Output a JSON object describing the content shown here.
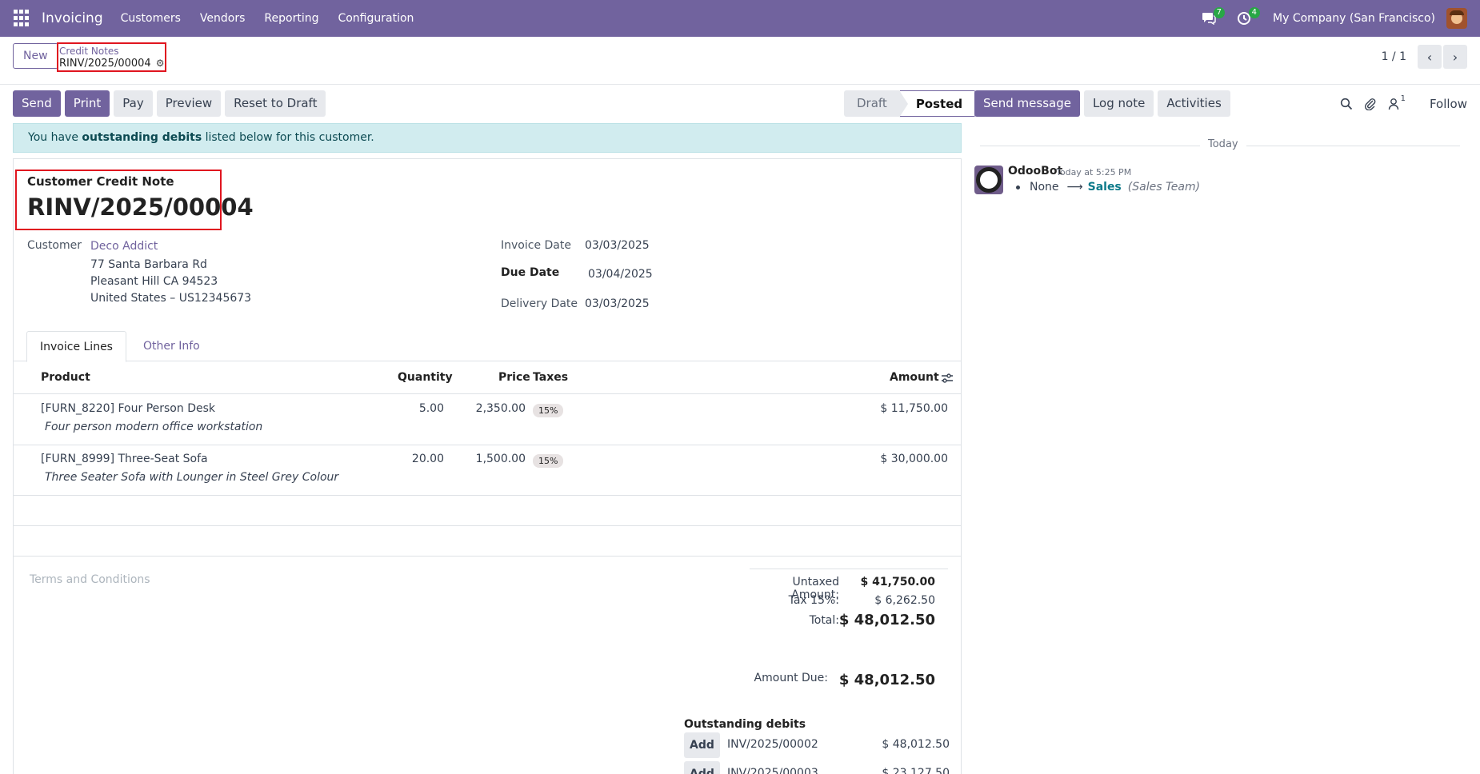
{
  "navbar": {
    "app_title": "Invoicing",
    "menu": [
      "Customers",
      "Vendors",
      "Reporting",
      "Configuration"
    ],
    "messages_badge": "7",
    "activities_badge": "4",
    "company": "My Company (San Francisco)"
  },
  "control": {
    "new_label": "New",
    "breadcrumb_parent": "Credit Notes",
    "breadcrumb_current": "RINV/2025/00004",
    "pager_value": "1 / 1"
  },
  "actions": {
    "send": "Send",
    "print": "Print",
    "pay": "Pay",
    "preview": "Preview",
    "reset": "Reset to Draft"
  },
  "status": {
    "draft": "Draft",
    "posted": "Posted"
  },
  "alert": {
    "prefix": "You have ",
    "bold": "outstanding debits",
    "suffix": " listed below for this customer."
  },
  "form": {
    "doc_type": "Customer Credit Note",
    "number": "RINV/2025/00004",
    "customer_label": "Customer",
    "customer_name": "Deco Addict",
    "address_line1": "77 Santa Barbara Rd",
    "address_line2": "Pleasant Hill CA 94523",
    "address_line3": "United States – US12345673",
    "invoice_date_label": "Invoice Date",
    "invoice_date": "03/03/2025",
    "due_date_label": "Due Date",
    "due_date": "03/04/2025",
    "delivery_date_label": "Delivery Date",
    "delivery_date": "03/03/2025"
  },
  "tabs": {
    "invoice_lines": "Invoice Lines",
    "other_info": "Other Info"
  },
  "table": {
    "headers": {
      "product": "Product",
      "quantity": "Quantity",
      "price": "Price",
      "taxes": "Taxes",
      "amount": "Amount"
    },
    "rows": [
      {
        "product": "[FURN_8220] Four Person Desk",
        "description": "Four person modern office workstation",
        "quantity": "5.00",
        "price": "2,350.00",
        "tax": "15%",
        "amount": "$ 11,750.00"
      },
      {
        "product": "[FURN_8999] Three-Seat Sofa",
        "description": "Three Seater Sofa with Lounger in Steel Grey Colour",
        "quantity": "20.00",
        "price": "1,500.00",
        "tax": "15%",
        "amount": "$ 30,000.00"
      }
    ]
  },
  "terms_placeholder": "Terms and Conditions",
  "totals": {
    "untaxed_label": "Untaxed Amount:",
    "untaxed": "$ 41,750.00",
    "tax_label": "Tax 15%:",
    "tax": "$ 6,262.50",
    "total_label": "Total:",
    "total": "$ 48,012.50",
    "amount_due_label": "Amount Due:",
    "amount_due": "$ 48,012.50"
  },
  "outstanding": {
    "title": "Outstanding debits",
    "add_label": "Add",
    "items": [
      {
        "ref": "INV/2025/00002",
        "amount": "$ 48,012.50"
      },
      {
        "ref": "INV/2025/00003",
        "amount": "$ 23,127.50"
      }
    ]
  },
  "chatter": {
    "send_message": "Send message",
    "log_note": "Log note",
    "activities": "Activities",
    "followers_count": "1",
    "follow": "Follow",
    "today": "Today",
    "author": "OdooBot",
    "time": "Today at 5:25 PM",
    "change_from": "None",
    "change_to": "Sales",
    "change_field": "(Sales Team)"
  },
  "colors": {
    "brand": "#71639e",
    "alert_bg": "#d1ecef",
    "highlight": "#e0151f",
    "badge": "#28a745"
  }
}
